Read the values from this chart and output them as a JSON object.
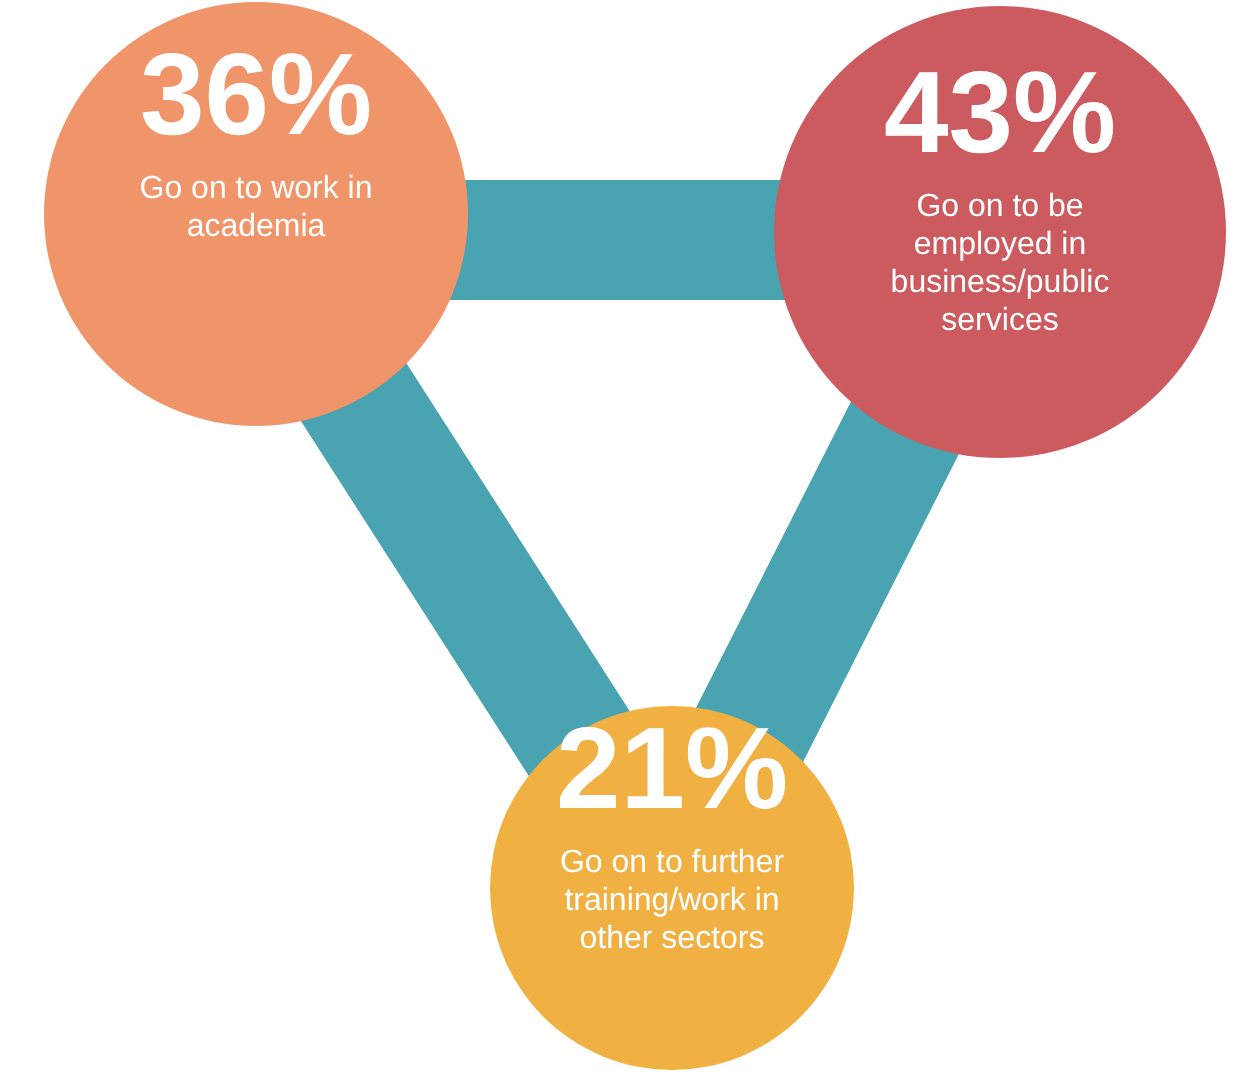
{
  "chart_data": {
    "type": "other",
    "categories": [
      "Go on to work in academia",
      "Go on to be employed in business/public services",
      "Go on to further training/work in other sectors"
    ],
    "values": [
      36,
      43,
      21
    ],
    "value_labels": [
      "36%",
      "43%",
      "21%"
    ],
    "colors": [
      "#f0956a",
      "#cc5b5f",
      "#f0b042"
    ]
  }
}
